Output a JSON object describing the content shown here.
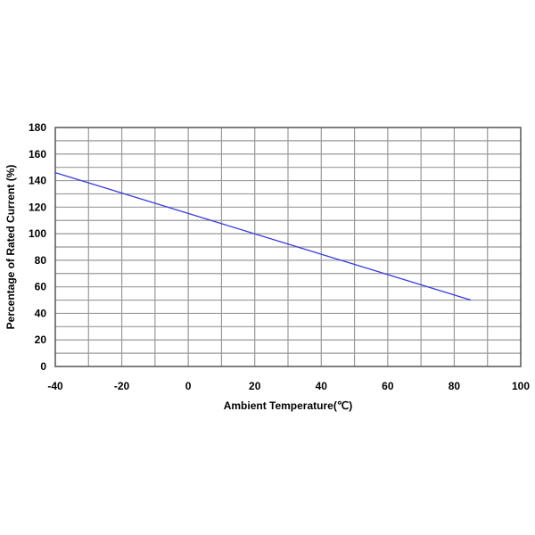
{
  "chart_data": {
    "type": "line",
    "title": "",
    "xlabel": "Ambient Temperature(℃)",
    "ylabel": "Percentage of Rated Current (%)",
    "xlim": [
      -40,
      100
    ],
    "ylim": [
      0,
      180
    ],
    "x_ticks": [
      -40,
      -20,
      0,
      20,
      40,
      60,
      80,
      100
    ],
    "y_ticks": [
      0,
      20,
      40,
      60,
      80,
      100,
      120,
      140,
      160,
      180
    ],
    "x_minor_step": 10,
    "y_minor_step": 10,
    "grid": true,
    "series": [
      {
        "x": [
          -40,
          85
        ],
        "y": [
          146,
          50
        ],
        "color": "#3b3bdd"
      }
    ]
  }
}
